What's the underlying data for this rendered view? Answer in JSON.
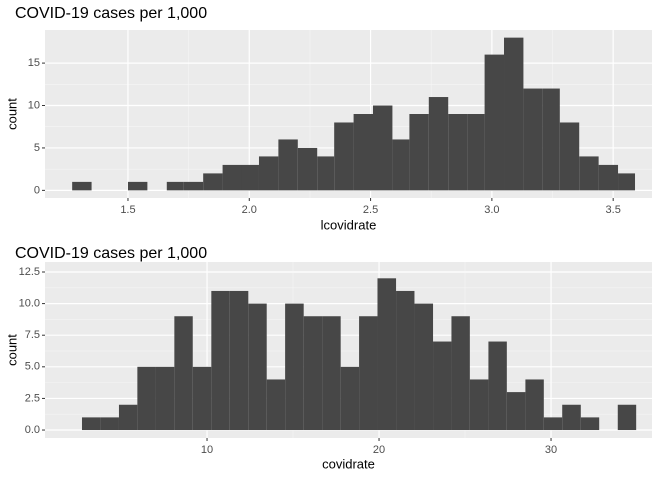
{
  "chart_data": [
    {
      "type": "histogram",
      "title": "COVID-19 cases per 1,000",
      "xlabel": "lcovidrate",
      "ylabel": "count",
      "color": "#474747",
      "bins": [
        1.27,
        1.35,
        1.42,
        1.5,
        1.58,
        1.66,
        1.73,
        1.81,
        1.89,
        1.97,
        2.04,
        2.12,
        2.2,
        2.28,
        2.35,
        2.43,
        2.51,
        2.59,
        2.66,
        2.74,
        2.82,
        2.9,
        2.97,
        3.05,
        3.13,
        3.21,
        3.28,
        3.36,
        3.44,
        3.52,
        3.59
      ],
      "counts": [
        1,
        0,
        0,
        1,
        0,
        1,
        1,
        2,
        3,
        3,
        4,
        6,
        5,
        4,
        8,
        9,
        10,
        6,
        9,
        11,
        9,
        9,
        16,
        18,
        12,
        12,
        8,
        4,
        3,
        2
      ],
      "xlim": [
        1.158,
        3.66
      ],
      "ylim": [
        -0.9,
        18.9
      ],
      "xticks": [
        1.5,
        {
          "value": 2,
          "label": "2.0"
        },
        2.5,
        {
          "value": 3,
          "label": "3.0"
        },
        3.5
      ],
      "yticks": [
        0,
        5,
        10,
        15
      ],
      "grid": true
    },
    {
      "type": "histogram",
      "title": "COVID-19 cases per 1,000",
      "xlabel": "covidrate",
      "ylabel": "count",
      "color": "#474747",
      "bins": [
        2.73,
        3.8,
        4.88,
        5.95,
        7.03,
        8.1,
        9.17,
        10.25,
        11.32,
        12.4,
        13.47,
        14.54,
        15.62,
        16.69,
        17.77,
        18.84,
        19.91,
        20.99,
        22.06,
        23.14,
        24.21,
        25.28,
        26.36,
        27.43,
        28.51,
        29.58,
        30.65,
        31.73,
        32.8,
        33.88,
        34.95
      ],
      "counts": [
        1,
        1,
        2,
        5,
        5,
        9,
        5,
        11,
        11,
        10,
        4,
        10,
        9,
        9,
        5,
        9,
        12,
        11,
        10,
        7,
        9,
        4,
        7,
        3,
        4,
        1,
        2,
        1,
        0,
        2
      ],
      "xlim": [
        0.58,
        35.87
      ],
      "ylim": [
        -0.63,
        13.29
      ],
      "xticks": [
        10,
        20,
        30
      ],
      "yticks": [
        {
          "value": 0,
          "label": "0.0"
        },
        2.5,
        {
          "value": 5,
          "label": "5.0"
        },
        7.5,
        {
          "value": 10,
          "label": "10.0"
        },
        12.5
      ],
      "grid": true
    }
  ]
}
